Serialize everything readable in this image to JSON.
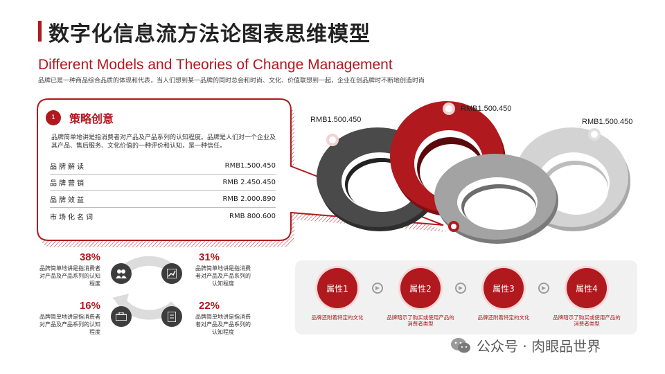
{
  "header": {
    "title": "数字化信息流方法论图表思维模型",
    "subtitle": "Different Models and Theories of Change Management",
    "description": "品牌已是一种商品综合品质的体现和代表，当人们想到某一品牌的同时总会和时尚、文化、价值联想到一起，企业在创品牌时不断地创造时尚"
  },
  "card": {
    "number": "1",
    "title": "策略创意",
    "description": "品牌简单地讲是指消费者对产品及产品系列的认知程度。品牌是人们对一个企业及其产品、售后服务、文化价值的一种评价和认知，是一种信任。",
    "rows": [
      {
        "label": "品牌解读",
        "value": "RMB1.500.450"
      },
      {
        "label": "品牌营销",
        "value": "RMB 2.450.450"
      },
      {
        "label": "品牌效益",
        "value": "RMB 2.000.890"
      },
      {
        "label": "市场化名词",
        "value": "RMB 800.600"
      }
    ]
  },
  "chain": {
    "label_left": "RMB1.500.450",
    "label_mid": "RMB1.500.450",
    "label_right": "RMB1.500.450"
  },
  "stats": [
    {
      "percent": "38%",
      "text": "品牌简单地讲是指消费者对产品及产品系列的认知程度",
      "icon": "people-icon"
    },
    {
      "percent": "31%",
      "text": "品牌简单地讲是指消费者对产品及产品系列的认知程度",
      "icon": "chart-icon"
    },
    {
      "percent": "16%",
      "text": "品牌简单地讲是指消费者对产品及产品系列的认知程度",
      "icon": "briefcase-icon"
    },
    {
      "percent": "22%",
      "text": "品牌简单地讲是指消费者对产品及产品系列的认知程度",
      "icon": "document-icon"
    }
  ],
  "process": [
    {
      "label": "属性1",
      "text": "品牌还附着特定的文化"
    },
    {
      "label": "属性2",
      "text": "品牌暗示了购买或使用产品的消费者类型"
    },
    {
      "label": "属性3",
      "text": "品牌还附着特定的文化"
    },
    {
      "label": "属性4",
      "text": "品牌暗示了购买或使用产品的消费者类型"
    }
  ],
  "watermark": "公众号 · 肉眼品世界",
  "colors": {
    "accent": "#b0191e",
    "dark": "#3d3d3d",
    "light_gray": "#c8c8c8"
  }
}
